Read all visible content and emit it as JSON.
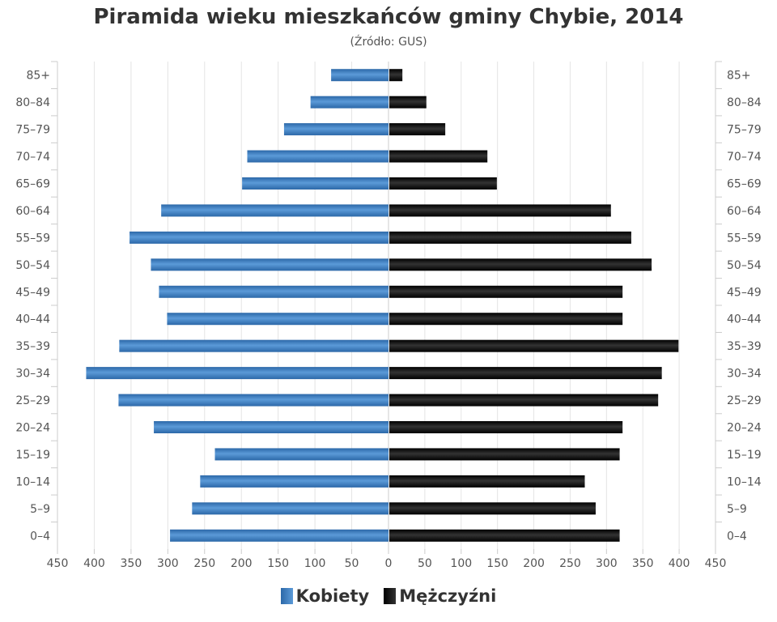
{
  "chart_data": {
    "type": "bar",
    "orientation": "horizontal-pyramid",
    "title": "Piramida wieku mieszkańców gminy Chybie, 2014",
    "subtitle": "(Źródło: GUS)",
    "categories": [
      "85+",
      "80–84",
      "75–79",
      "70–74",
      "65–69",
      "60–64",
      "55–59",
      "50–54",
      "45–49",
      "40–44",
      "35–39",
      "30–34",
      "25–29",
      "20–24",
      "15–19",
      "10–14",
      "5–9",
      "0–4"
    ],
    "series": [
      {
        "name": "Kobiety",
        "color": "#3d7fc4",
        "side": "left",
        "values": [
          78,
          106,
          142,
          192,
          199,
          309,
          352,
          323,
          312,
          301,
          366,
          411,
          367,
          319,
          236,
          256,
          267,
          297
        ]
      },
      {
        "name": "Mężczyźni",
        "color": "#111111",
        "side": "right",
        "values": [
          18,
          51,
          77,
          135,
          148,
          305,
          333,
          361,
          321,
          321,
          398,
          375,
          370,
          321,
          317,
          269,
          284,
          317
        ]
      }
    ],
    "xticks": [
      "450",
      "400",
      "350",
      "300",
      "250",
      "200",
      "150",
      "100",
      "50",
      "0",
      "50",
      "100",
      "150",
      "200",
      "250",
      "300",
      "350",
      "400",
      "450"
    ],
    "xlim": [
      0,
      450
    ],
    "grid": true,
    "legend": "bottom"
  }
}
